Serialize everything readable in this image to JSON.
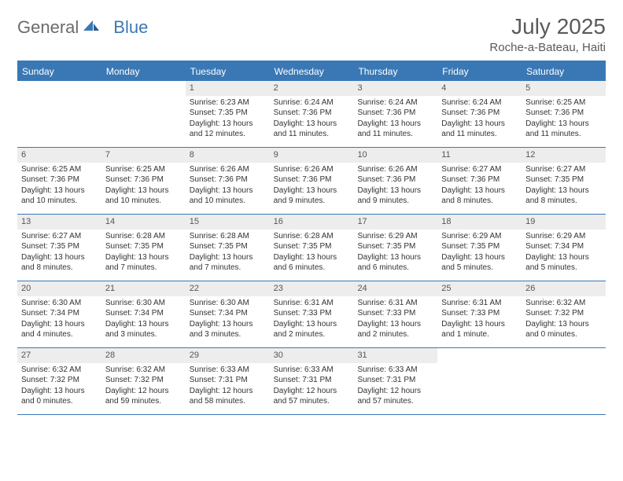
{
  "logo": {
    "text_general": "General",
    "text_blue": "Blue"
  },
  "title": "July 2025",
  "location": "Roche-a-Bateau, Haiti",
  "colors": {
    "accent": "#3a78b5",
    "header_bg": "#3a78b5",
    "header_text": "#ffffff",
    "daynum_bg": "#ededed",
    "text": "#333333",
    "title_text": "#5a5a5a"
  },
  "day_names": [
    "Sunday",
    "Monday",
    "Tuesday",
    "Wednesday",
    "Thursday",
    "Friday",
    "Saturday"
  ],
  "weeks": [
    [
      {
        "empty": true
      },
      {
        "empty": true
      },
      {
        "num": "1",
        "sunrise": "Sunrise: 6:23 AM",
        "sunset": "Sunset: 7:35 PM",
        "dl1": "Daylight: 13 hours",
        "dl2": "and 12 minutes."
      },
      {
        "num": "2",
        "sunrise": "Sunrise: 6:24 AM",
        "sunset": "Sunset: 7:36 PM",
        "dl1": "Daylight: 13 hours",
        "dl2": "and 11 minutes."
      },
      {
        "num": "3",
        "sunrise": "Sunrise: 6:24 AM",
        "sunset": "Sunset: 7:36 PM",
        "dl1": "Daylight: 13 hours",
        "dl2": "and 11 minutes."
      },
      {
        "num": "4",
        "sunrise": "Sunrise: 6:24 AM",
        "sunset": "Sunset: 7:36 PM",
        "dl1": "Daylight: 13 hours",
        "dl2": "and 11 minutes."
      },
      {
        "num": "5",
        "sunrise": "Sunrise: 6:25 AM",
        "sunset": "Sunset: 7:36 PM",
        "dl1": "Daylight: 13 hours",
        "dl2": "and 11 minutes."
      }
    ],
    [
      {
        "num": "6",
        "sunrise": "Sunrise: 6:25 AM",
        "sunset": "Sunset: 7:36 PM",
        "dl1": "Daylight: 13 hours",
        "dl2": "and 10 minutes."
      },
      {
        "num": "7",
        "sunrise": "Sunrise: 6:25 AM",
        "sunset": "Sunset: 7:36 PM",
        "dl1": "Daylight: 13 hours",
        "dl2": "and 10 minutes."
      },
      {
        "num": "8",
        "sunrise": "Sunrise: 6:26 AM",
        "sunset": "Sunset: 7:36 PM",
        "dl1": "Daylight: 13 hours",
        "dl2": "and 10 minutes."
      },
      {
        "num": "9",
        "sunrise": "Sunrise: 6:26 AM",
        "sunset": "Sunset: 7:36 PM",
        "dl1": "Daylight: 13 hours",
        "dl2": "and 9 minutes."
      },
      {
        "num": "10",
        "sunrise": "Sunrise: 6:26 AM",
        "sunset": "Sunset: 7:36 PM",
        "dl1": "Daylight: 13 hours",
        "dl2": "and 9 minutes."
      },
      {
        "num": "11",
        "sunrise": "Sunrise: 6:27 AM",
        "sunset": "Sunset: 7:36 PM",
        "dl1": "Daylight: 13 hours",
        "dl2": "and 8 minutes."
      },
      {
        "num": "12",
        "sunrise": "Sunrise: 6:27 AM",
        "sunset": "Sunset: 7:35 PM",
        "dl1": "Daylight: 13 hours",
        "dl2": "and 8 minutes."
      }
    ],
    [
      {
        "num": "13",
        "sunrise": "Sunrise: 6:27 AM",
        "sunset": "Sunset: 7:35 PM",
        "dl1": "Daylight: 13 hours",
        "dl2": "and 8 minutes."
      },
      {
        "num": "14",
        "sunrise": "Sunrise: 6:28 AM",
        "sunset": "Sunset: 7:35 PM",
        "dl1": "Daylight: 13 hours",
        "dl2": "and 7 minutes."
      },
      {
        "num": "15",
        "sunrise": "Sunrise: 6:28 AM",
        "sunset": "Sunset: 7:35 PM",
        "dl1": "Daylight: 13 hours",
        "dl2": "and 7 minutes."
      },
      {
        "num": "16",
        "sunrise": "Sunrise: 6:28 AM",
        "sunset": "Sunset: 7:35 PM",
        "dl1": "Daylight: 13 hours",
        "dl2": "and 6 minutes."
      },
      {
        "num": "17",
        "sunrise": "Sunrise: 6:29 AM",
        "sunset": "Sunset: 7:35 PM",
        "dl1": "Daylight: 13 hours",
        "dl2": "and 6 minutes."
      },
      {
        "num": "18",
        "sunrise": "Sunrise: 6:29 AM",
        "sunset": "Sunset: 7:35 PM",
        "dl1": "Daylight: 13 hours",
        "dl2": "and 5 minutes."
      },
      {
        "num": "19",
        "sunrise": "Sunrise: 6:29 AM",
        "sunset": "Sunset: 7:34 PM",
        "dl1": "Daylight: 13 hours",
        "dl2": "and 5 minutes."
      }
    ],
    [
      {
        "num": "20",
        "sunrise": "Sunrise: 6:30 AM",
        "sunset": "Sunset: 7:34 PM",
        "dl1": "Daylight: 13 hours",
        "dl2": "and 4 minutes."
      },
      {
        "num": "21",
        "sunrise": "Sunrise: 6:30 AM",
        "sunset": "Sunset: 7:34 PM",
        "dl1": "Daylight: 13 hours",
        "dl2": "and 3 minutes."
      },
      {
        "num": "22",
        "sunrise": "Sunrise: 6:30 AM",
        "sunset": "Sunset: 7:34 PM",
        "dl1": "Daylight: 13 hours",
        "dl2": "and 3 minutes."
      },
      {
        "num": "23",
        "sunrise": "Sunrise: 6:31 AM",
        "sunset": "Sunset: 7:33 PM",
        "dl1": "Daylight: 13 hours",
        "dl2": "and 2 minutes."
      },
      {
        "num": "24",
        "sunrise": "Sunrise: 6:31 AM",
        "sunset": "Sunset: 7:33 PM",
        "dl1": "Daylight: 13 hours",
        "dl2": "and 2 minutes."
      },
      {
        "num": "25",
        "sunrise": "Sunrise: 6:31 AM",
        "sunset": "Sunset: 7:33 PM",
        "dl1": "Daylight: 13 hours",
        "dl2": "and 1 minute."
      },
      {
        "num": "26",
        "sunrise": "Sunrise: 6:32 AM",
        "sunset": "Sunset: 7:32 PM",
        "dl1": "Daylight: 13 hours",
        "dl2": "and 0 minutes."
      }
    ],
    [
      {
        "num": "27",
        "sunrise": "Sunrise: 6:32 AM",
        "sunset": "Sunset: 7:32 PM",
        "dl1": "Daylight: 13 hours",
        "dl2": "and 0 minutes."
      },
      {
        "num": "28",
        "sunrise": "Sunrise: 6:32 AM",
        "sunset": "Sunset: 7:32 PM",
        "dl1": "Daylight: 12 hours",
        "dl2": "and 59 minutes."
      },
      {
        "num": "29",
        "sunrise": "Sunrise: 6:33 AM",
        "sunset": "Sunset: 7:31 PM",
        "dl1": "Daylight: 12 hours",
        "dl2": "and 58 minutes."
      },
      {
        "num": "30",
        "sunrise": "Sunrise: 6:33 AM",
        "sunset": "Sunset: 7:31 PM",
        "dl1": "Daylight: 12 hours",
        "dl2": "and 57 minutes."
      },
      {
        "num": "31",
        "sunrise": "Sunrise: 6:33 AM",
        "sunset": "Sunset: 7:31 PM",
        "dl1": "Daylight: 12 hours",
        "dl2": "and 57 minutes."
      },
      {
        "empty": true
      },
      {
        "empty": true
      }
    ]
  ]
}
